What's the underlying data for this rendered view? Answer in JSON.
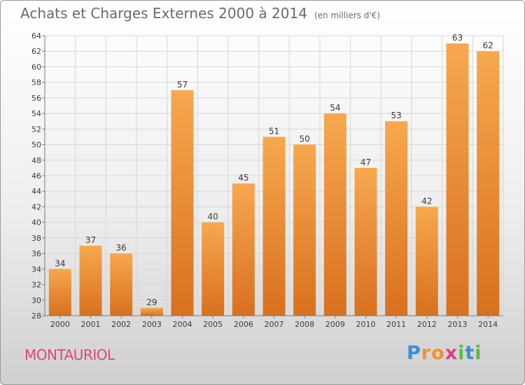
{
  "header": {
    "title": "Achats et Charges Externes 2000 à 2014",
    "unit": "(en milliers d'€)"
  },
  "footer": {
    "town": "MONTAURIOL"
  },
  "logo": {
    "text": "Proxiti",
    "letters": [
      {
        "char": "P",
        "color": "#3b8fd4"
      },
      {
        "char": "r",
        "color": "#f0932b"
      },
      {
        "char": "o",
        "color": "#f0932b"
      },
      {
        "char": "x",
        "color": "#e03c8a"
      },
      {
        "char": "i",
        "color": "#5dbb3f"
      },
      {
        "char": "t",
        "color": "#3b8fd4"
      },
      {
        "char": "i",
        "color": "#5dbb3f"
      }
    ]
  },
  "colors": {
    "bar_light": "#f7a84e",
    "bar_dark": "#d9701e",
    "grid": "#d6d6d6",
    "axis": "#7a7a7a"
  },
  "chart_data": {
    "type": "bar",
    "title": "Achats et Charges Externes 2000 à 2014",
    "subtitle": "(en milliers d'€)",
    "xlabel": "",
    "ylabel": "",
    "categories": [
      "2000",
      "2001",
      "2002",
      "2003",
      "2004",
      "2005",
      "2006",
      "2007",
      "2008",
      "2009",
      "2010",
      "2011",
      "2012",
      "2013",
      "2014"
    ],
    "values": [
      34,
      37,
      36,
      29,
      57,
      40,
      45,
      51,
      50,
      54,
      47,
      53,
      42,
      63,
      62
    ],
    "ylim": [
      28,
      64
    ],
    "yticks": [
      28,
      30,
      32,
      34,
      36,
      38,
      40,
      42,
      44,
      46,
      48,
      50,
      52,
      54,
      56,
      58,
      60,
      62,
      64
    ],
    "grid": true,
    "legend": "none"
  }
}
